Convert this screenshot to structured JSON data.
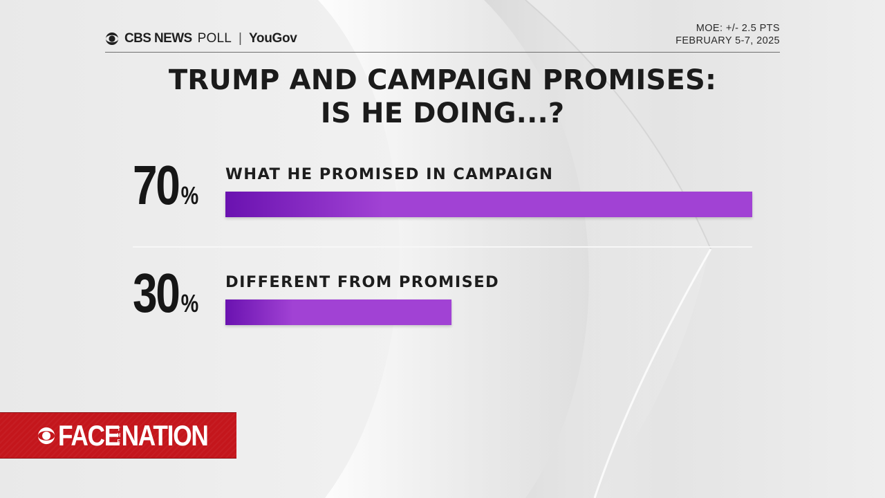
{
  "header": {
    "brand": "CBS NEWS",
    "poll": "POLL",
    "separator": "|",
    "partner": "YouGov",
    "moe": "MOE: +/- 2.5 PTS",
    "dates": "FEBRUARY 5-7, 2025"
  },
  "title": {
    "line1": "TRUMP AND CAMPAIGN PROMISES:",
    "line2": "IS HE DOING...?"
  },
  "chart_data": {
    "type": "bar",
    "orientation": "horizontal",
    "title": "TRUMP AND CAMPAIGN PROMISES: IS HE DOING...?",
    "categories": [
      "WHAT HE PROMISED IN CAMPAIGN",
      "DIFFERENT FROM PROMISED"
    ],
    "values": [
      70,
      30
    ],
    "value_labels": [
      "70",
      "30"
    ],
    "unit": "%",
    "xlim": [
      0,
      70
    ],
    "grid": false,
    "legend": "none"
  },
  "colors": {
    "bar_start": "#6a12b0",
    "bar_end": "#a142d4",
    "logo_red": "#c4161c",
    "text": "#1b1b1b"
  },
  "logo": {
    "face": "FACE",
    "the": "THE",
    "nation": "NATION",
    "icon": "cbs-eye-icon"
  }
}
